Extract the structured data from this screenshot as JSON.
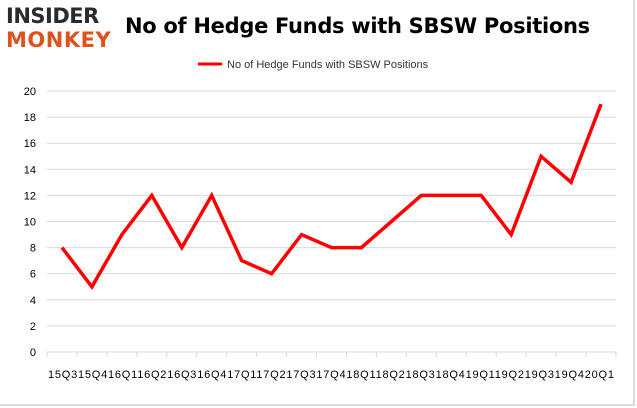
{
  "logo": {
    "line1": "INSIDER",
    "line2": "MONKEY"
  },
  "colors": {
    "series": "#ff0000",
    "logo_dark": "#2b2b2b",
    "logo_accent": "#e0521d",
    "grid": "#d9d9d9",
    "axis_text": "#000000"
  },
  "chart_data": {
    "type": "line",
    "title": "No of Hedge Funds with SBSW Positions",
    "xlabel": "",
    "ylabel": "",
    "categories": [
      "2015Q3",
      "2015Q4",
      "2016Q1",
      "2016Q2",
      "2016Q3",
      "2016Q4",
      "2017Q1",
      "2017Q2",
      "2017Q3",
      "2017Q4",
      "2018Q1",
      "2018Q2",
      "2018Q3",
      "2018Q4",
      "2019Q1",
      "2019Q2",
      "2019Q3",
      "2019Q4",
      "2020Q1"
    ],
    "x_tick_text": "15Q315Q416Q116Q216Q316Q417Q117Q217Q317Q418Q118Q218Q318Q419Q119Q219Q319Q420Q1",
    "series": [
      {
        "name": "No of Hedge Funds with SBSW Positions",
        "values": [
          8,
          5,
          9,
          12,
          8,
          12,
          7,
          6,
          9,
          8,
          8,
          10,
          12,
          12,
          12,
          9,
          15,
          13,
          19
        ]
      }
    ],
    "ylim": [
      0,
      20
    ],
    "yticks": [
      0,
      2,
      4,
      6,
      8,
      10,
      12,
      14,
      16,
      18,
      20
    ],
    "grid": true,
    "legend_position": "top-center"
  }
}
